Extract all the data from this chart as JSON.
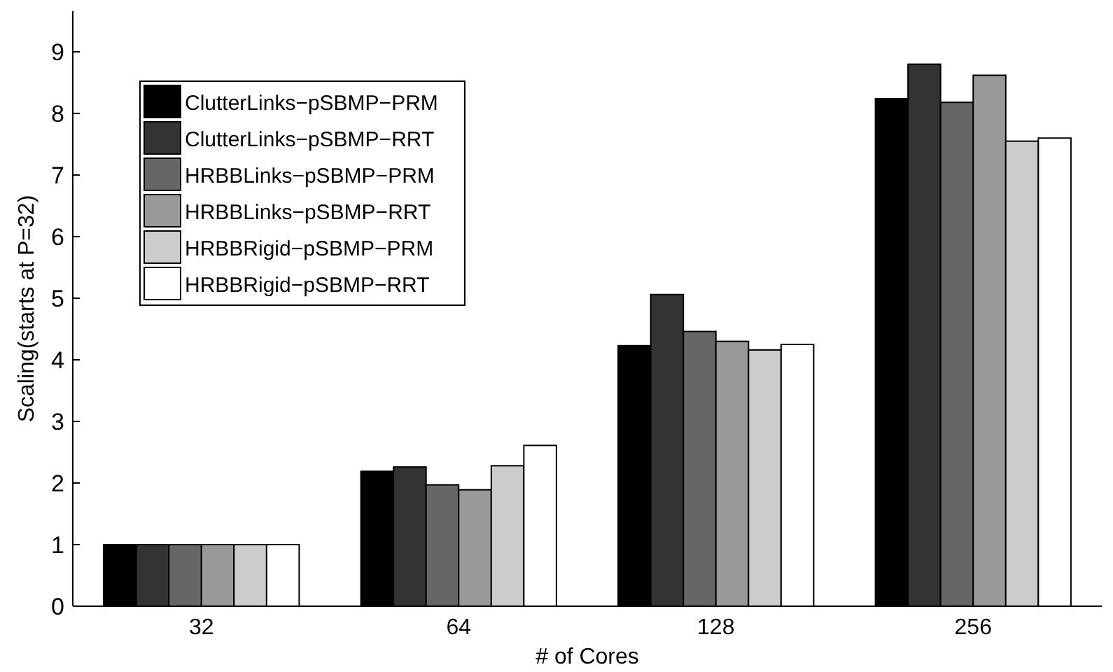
{
  "chart_data": {
    "type": "bar",
    "xlabel": "# of Cores",
    "ylabel": "Scaling(starts at P=32)",
    "categories": [
      "32",
      "64",
      "128",
      "256"
    ],
    "ylim": [
      0,
      9.66
    ],
    "yticks": [
      0,
      1,
      2,
      3,
      4,
      5,
      6,
      7,
      8,
      9
    ],
    "legend": "top left",
    "grid": false,
    "series": [
      {
        "name": "ClutterLinks−pSBMP−PRM",
        "color": "#000000",
        "values": [
          1,
          2.19,
          4.23,
          8.24
        ]
      },
      {
        "name": "ClutterLinks−pSBMP−RRT",
        "color": "#333333",
        "values": [
          1,
          2.26,
          5.06,
          8.8
        ]
      },
      {
        "name": "HRBBLinks−pSBMP−PRM",
        "color": "#666666",
        "values": [
          1,
          1.97,
          4.46,
          8.18
        ]
      },
      {
        "name": "HRBBLinks−pSBMP−RRT",
        "color": "#999999",
        "values": [
          1,
          1.89,
          4.3,
          8.62
        ]
      },
      {
        "name": "HRBBRigid−pSBMP−PRM",
        "color": "#cccccc",
        "values": [
          1,
          2.28,
          4.16,
          7.55
        ]
      },
      {
        "name": "HRBBRigid−pSBMP−RRT",
        "color": "#ffffff",
        "values": [
          1,
          2.61,
          4.25,
          7.6
        ]
      }
    ]
  }
}
